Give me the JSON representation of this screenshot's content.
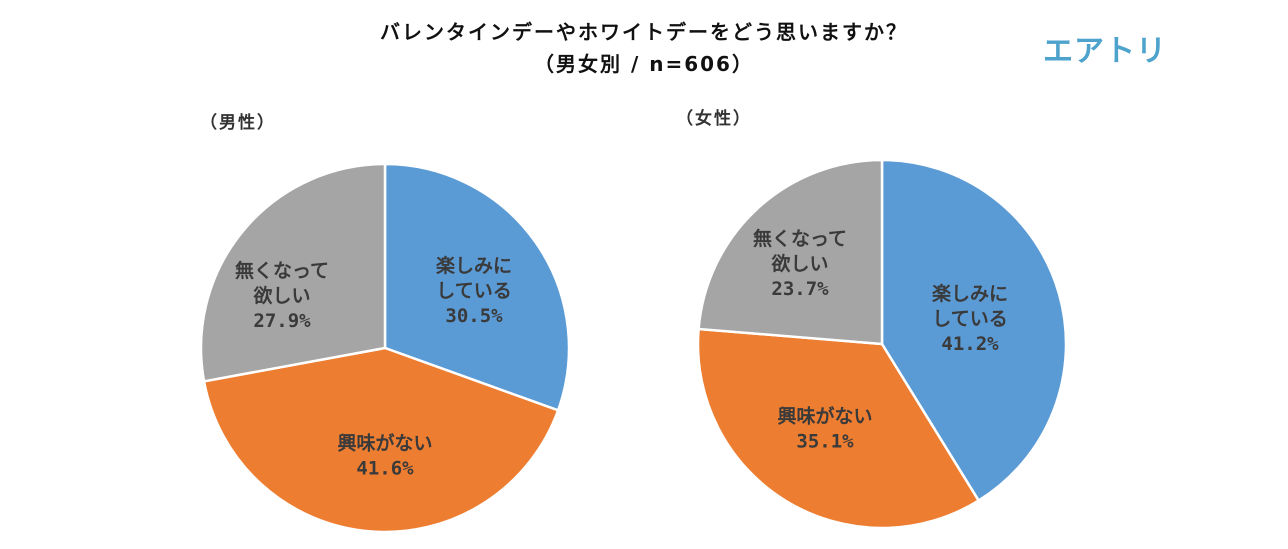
{
  "title": {
    "line1": "バレンタインデーやホワイトデーをどう思いますか？",
    "line2": "（男女別 / n=606）"
  },
  "logo": "エアトリ",
  "colors": {
    "楽しみにしている": "#5b9bd5",
    "興味がない": "#ed7d31",
    "無くなって欲しい": "#a5a5a5"
  },
  "chart_data": [
    {
      "type": "pie",
      "title": "（男性）",
      "slices": [
        {
          "label_lines": [
            "楽しみに",
            "している"
          ],
          "value": 30.5,
          "value_label": "30.5%",
          "color": "#5b9bd5"
        },
        {
          "label_lines": [
            "興味がない"
          ],
          "value": 41.6,
          "value_label": "41.6%",
          "color": "#ed7d31"
        },
        {
          "label_lines": [
            "無くなって",
            "欲しい"
          ],
          "value": 27.9,
          "value_label": "27.9%",
          "color": "#a5a5a5"
        }
      ]
    },
    {
      "type": "pie",
      "title": "（女性）",
      "slices": [
        {
          "label_lines": [
            "楽しみに",
            "している"
          ],
          "value": 41.2,
          "value_label": "41.2%",
          "color": "#5b9bd5"
        },
        {
          "label_lines": [
            "興味がない"
          ],
          "value": 35.1,
          "value_label": "35.1%",
          "color": "#ed7d31"
        },
        {
          "label_lines": [
            "無くなって",
            "欲しい"
          ],
          "value": 23.7,
          "value_label": "23.7%",
          "color": "#a5a5a5"
        }
      ]
    }
  ]
}
